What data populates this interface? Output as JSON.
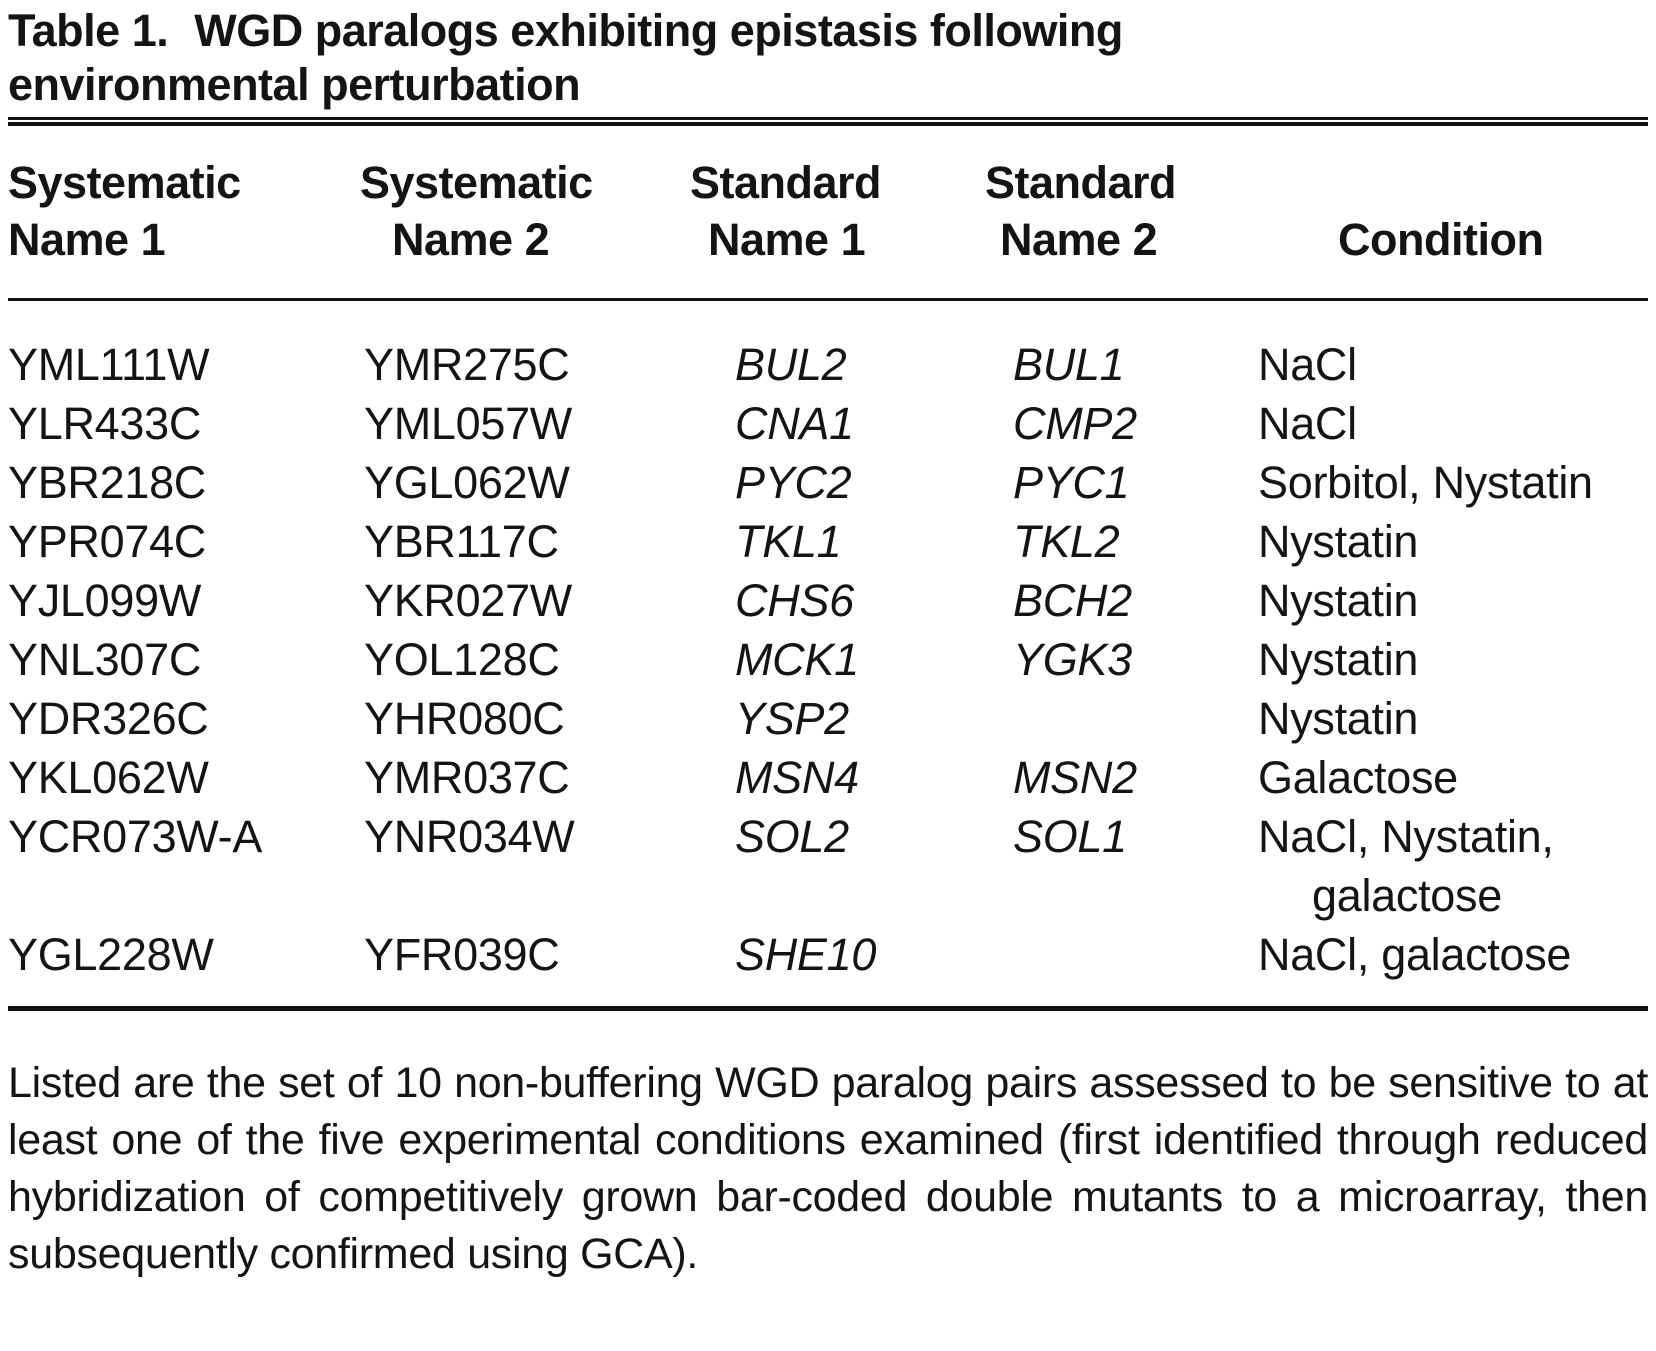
{
  "title": {
    "label": "Table 1.",
    "text": "WGD paralogs exhibiting epistasis following environmental perturbation"
  },
  "header": {
    "col1": {
      "line1": "Systematic",
      "line2": "Name 1"
    },
    "col2": {
      "line1": "Systematic",
      "line2": "Name 2"
    },
    "col3": {
      "line1": "Standard",
      "line2": "Name 1"
    },
    "col4": {
      "line1": "Standard",
      "line2": "Name 2"
    },
    "col5": {
      "line1": "",
      "line2": "Condition"
    }
  },
  "table": {
    "rows": [
      {
        "sys1": "YML111W",
        "sys2": "YMR275C",
        "std1": "BUL2",
        "std2": "BUL1",
        "cond": "NaCl"
      },
      {
        "sys1": "YLR433C",
        "sys2": "YML057W",
        "std1": "CNA1",
        "std2": "CMP2",
        "cond": "NaCl"
      },
      {
        "sys1": "YBR218C",
        "sys2": "YGL062W",
        "std1": "PYC2",
        "std2": "PYC1",
        "cond": "Sorbitol, Nystatin"
      },
      {
        "sys1": "YPR074C",
        "sys2": "YBR117C",
        "std1": "TKL1",
        "std2": "TKL2",
        "cond": "Nystatin"
      },
      {
        "sys1": "YJL099W",
        "sys2": "YKR027W",
        "std1": "CHS6",
        "std2": "BCH2",
        "cond": "Nystatin"
      },
      {
        "sys1": "YNL307C",
        "sys2": "YOL128C",
        "std1": "MCK1",
        "std2": "YGK3",
        "cond": "Nystatin"
      },
      {
        "sys1": "YDR326C",
        "sys2": "YHR080C",
        "std1": "YSP2",
        "std2": "",
        "cond": "Nystatin"
      },
      {
        "sys1": "YKL062W",
        "sys2": "YMR037C",
        "std1": "MSN4",
        "std2": "MSN2",
        "cond": "Galactose"
      },
      {
        "sys1": "YCR073W-A",
        "sys2": "YNR034W",
        "std1": "SOL2",
        "std2": "SOL1",
        "cond": "NaCl, Nystatin,",
        "cond2": "galactose"
      },
      {
        "sys1": "YGL228W",
        "sys2": "YFR039C",
        "std1": "SHE10",
        "std2": "",
        "cond": "NaCl, galactose"
      }
    ]
  },
  "caption": "Listed are the set of 10 non-buffering WGD paralog pairs assessed to be sensitive to at least one of the five experimental conditions examined (first identified through reduced hybridization of competitively grown bar-coded double mutants to a microarray, then subsequently confirmed using GCA)."
}
